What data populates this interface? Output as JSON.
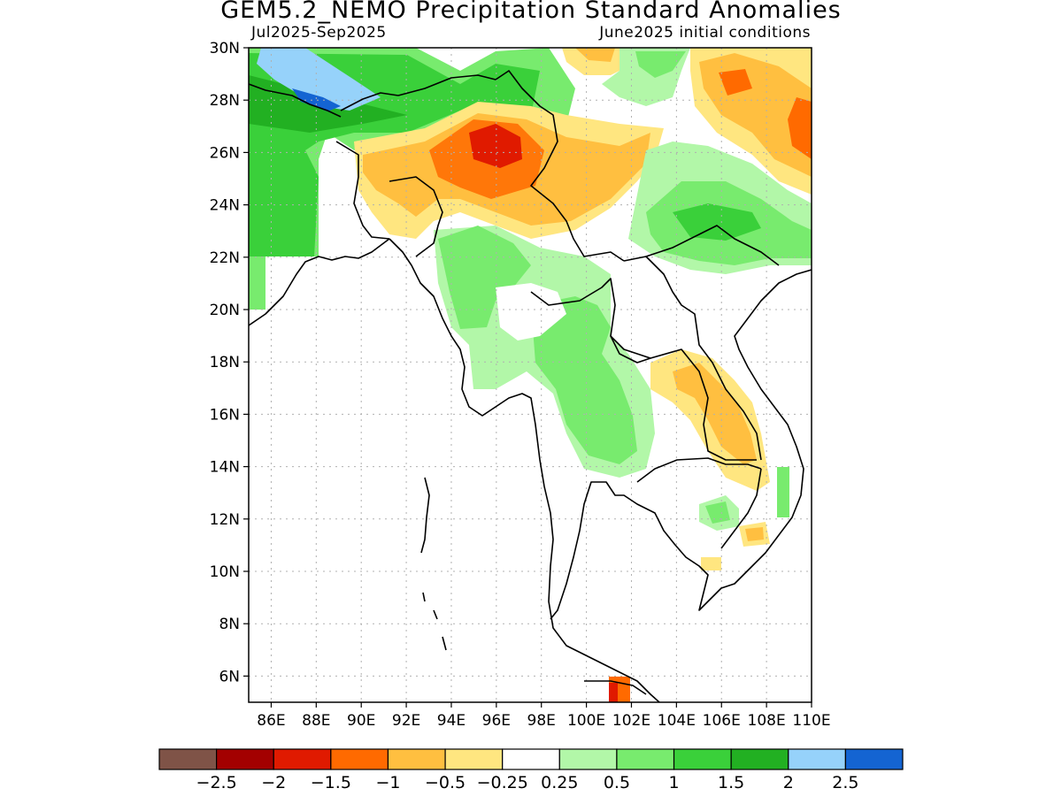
{
  "title": "GEM5.2_NEMO Precipitation Standard Anomalies",
  "subtitle_left": "Jul2025-Sep2025",
  "subtitle_right": "June2025 initial conditions",
  "map": {
    "lon_range": [
      85,
      110
    ],
    "lat_range": [
      5,
      30
    ],
    "lat_ticks": [
      "6N",
      "8N",
      "10N",
      "12N",
      "14N",
      "16N",
      "18N",
      "20N",
      "22N",
      "24N",
      "26N",
      "28N",
      "30N"
    ],
    "lon_ticks": [
      "86E",
      "88E",
      "90E",
      "92E",
      "94E",
      "96E",
      "98E",
      "100E",
      "102E",
      "104E",
      "106E",
      "108E",
      "110E"
    ]
  },
  "colorbar": {
    "colors": [
      "#7f5347",
      "#a30000",
      "#e01a00",
      "#ff6a00",
      "#ffbf40",
      "#ffe680",
      "#ffffff",
      "#b2f7a8",
      "#78eb6e",
      "#3ad03a",
      "#22b022",
      "#96d2fa",
      "#1464d2"
    ],
    "labels": [
      "-2.5",
      "-2",
      "-1.5",
      "-1",
      "-0.5",
      "-0.25",
      "0.25",
      "0.5",
      "1",
      "1.5",
      "2",
      "2.5"
    ]
  }
}
